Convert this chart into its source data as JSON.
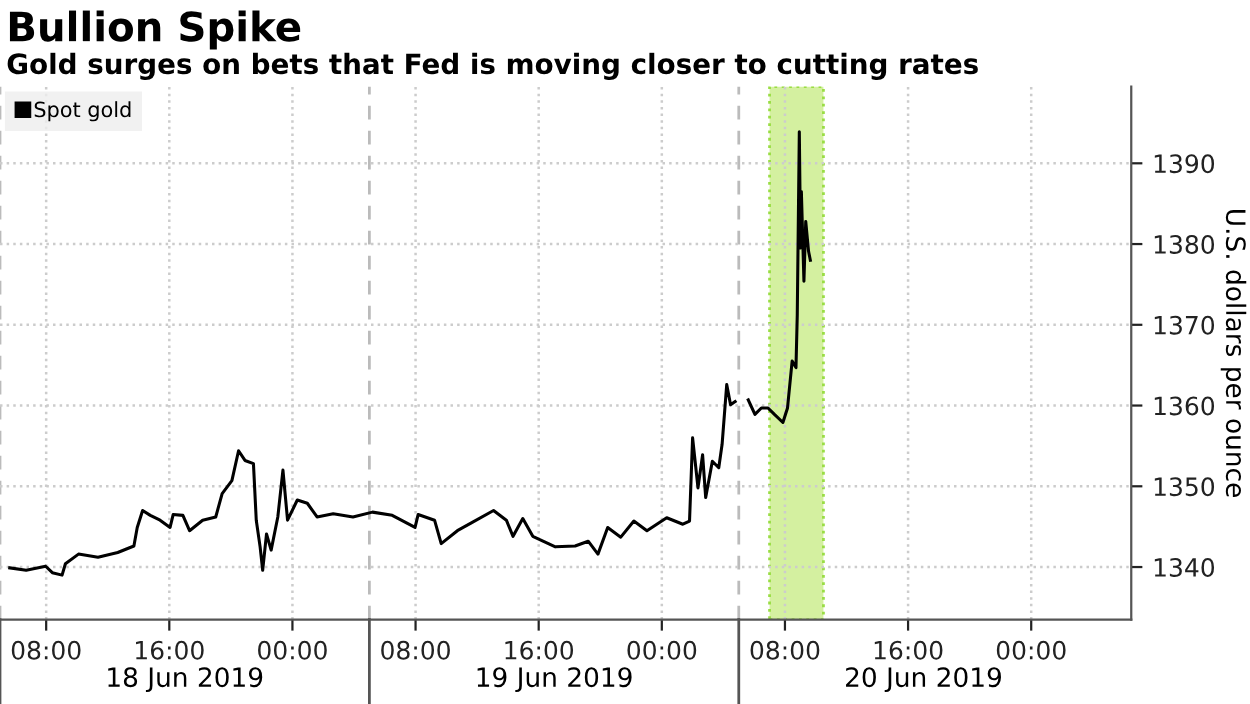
{
  "chart_data": {
    "type": "line",
    "title": "Bullion Spike",
    "subtitle": "Gold surges on bets that Fed is moving closer to cutting rates",
    "ylabel": "U.S. dollars per ounce",
    "x": [
      "2019-06-18T05:38",
      "2019-06-18T06:42",
      "2019-06-18T07:58",
      "2019-06-18T08:24",
      "2019-06-18T09:02",
      "2019-06-18T09:15",
      "2019-06-18T10:06",
      "2019-06-18T11:22",
      "2019-06-18T12:39",
      "2019-06-18T13:42",
      "2019-06-18T13:55",
      "2019-06-18T14:16",
      "2019-06-18T14:46",
      "2019-06-18T15:24",
      "2019-06-18T16:03",
      "2019-06-18T16:15",
      "2019-06-18T16:53",
      "2019-06-18T17:19",
      "2019-06-18T18:10",
      "2019-06-18T19:01",
      "2019-06-18T19:26",
      "2019-06-18T20:04",
      "2019-06-18T20:30",
      "2019-06-18T20:55",
      "2019-06-18T21:28",
      "2019-06-18T21:39",
      "2019-06-18T21:54",
      "2019-06-18T22:04",
      "2019-06-18T22:19",
      "2019-06-18T22:37",
      "2019-06-18T23:03",
      "2019-06-18T23:23",
      "2019-06-18T23:41",
      "2019-06-19T00:19",
      "2019-06-19T00:58",
      "2019-06-19T01:36",
      "2019-06-19T02:39",
      "2019-06-19T03:56",
      "2019-06-19T05:12",
      "2019-06-19T06:29",
      "2019-06-19T07:58",
      "2019-06-19T08:10",
      "2019-06-19T09:14",
      "2019-06-19T09:40",
      "2019-06-19T10:43",
      "2019-06-19T11:34",
      "2019-06-19T13:04",
      "2019-06-19T13:54",
      "2019-06-19T14:20",
      "2019-06-19T14:58",
      "2019-06-19T15:37",
      "2019-06-19T17:05",
      "2019-06-19T18:22",
      "2019-06-19T19:13",
      "2019-06-19T19:51",
      "2019-06-19T20:29",
      "2019-06-19T21:20",
      "2019-06-19T22:11",
      "2019-06-19T23:02",
      "2019-06-20T00:19",
      "2019-06-20T01:22",
      "2019-06-20T01:48",
      "2019-06-20T02:00",
      "2019-06-20T02:21",
      "2019-06-20T02:39",
      "2019-06-20T02:51",
      "2019-06-20T03:17",
      "2019-06-20T03:42",
      "2019-06-20T03:55",
      "2019-06-20T04:13",
      "2019-06-20T04:28",
      "2019-06-20T04:46",
      "2019-06-20T05:10",
      "2019-06-20T05:37",
      "2019-06-20T06:03",
      "2019-06-20T06:28",
      "2019-06-20T06:54",
      "2019-06-20T07:19",
      "2019-06-20T07:52",
      "2019-06-20T08:10",
      "2019-06-20T08:28",
      "2019-06-20T08:43",
      "2019-06-20T08:48",
      "2019-06-20T08:56",
      "2019-06-20T09:01",
      "2019-06-20T09:04",
      "2019-06-20T09:14",
      "2019-06-20T09:21",
      "2019-06-20T09:32",
      "2019-06-20T09:39"
    ],
    "series": [
      {
        "name": "Spot gold",
        "color": "#000000",
        "values": [
          1339.9,
          1339.6,
          1340.1,
          1339.3,
          1339.0,
          1340.4,
          1341.6,
          1341.2,
          1341.8,
          1342.6,
          1344.9,
          1347.0,
          1346.4,
          1345.8,
          1344.9,
          1346.5,
          1346.4,
          1344.5,
          1345.8,
          1346.2,
          1349.1,
          1350.7,
          1354.4,
          1353.2,
          1352.8,
          1345.8,
          1342.5,
          1339.6,
          1344.1,
          1342.1,
          1346.2,
          1352.0,
          1345.8,
          1348.3,
          1347.9,
          1346.2,
          1346.6,
          1346.2,
          1346.8,
          1346.4,
          1344.9,
          1346.5,
          1345.8,
          1342.9,
          1344.5,
          1345.4,
          1347.0,
          1345.8,
          1343.8,
          1346.0,
          1343.8,
          1342.5,
          1342.6,
          1343.2,
          1341.6,
          1344.9,
          1343.7,
          1345.7,
          1344.5,
          1346.1,
          1345.3,
          1345.7,
          1356.0,
          1349.8,
          1353.9,
          1348.6,
          1353.1,
          1352.3,
          1355.2,
          1362.6,
          1360.1,
          1360.5,
          null,
          1360.7,
          1358.9,
          1359.7,
          1359.7,
          1358.9,
          1357.9,
          1359.7,
          1365.5,
          1364.7,
          1371.2,
          1393.9,
          1379.5,
          1386.5,
          1375.4,
          1382.8,
          1379.1,
          1378.0
        ]
      }
    ],
    "xlim": [
      "2019-06-18T05:00",
      "2019-06-21T06:30"
    ],
    "xticks": [
      {
        "value": "2019-06-18T08:00",
        "label": "08:00"
      },
      {
        "value": "2019-06-18T16:00",
        "label": "16:00"
      },
      {
        "value": "2019-06-19T00:00",
        "label": "00:00"
      },
      {
        "value": "2019-06-19T08:00",
        "label": "08:00"
      },
      {
        "value": "2019-06-19T16:00",
        "label": "16:00"
      },
      {
        "value": "2019-06-20T00:00",
        "label": "00:00"
      },
      {
        "value": "2019-06-20T08:00",
        "label": "08:00"
      },
      {
        "value": "2019-06-20T16:00",
        "label": "16:00"
      },
      {
        "value": "2019-06-21T00:00",
        "label": "00:00"
      }
    ],
    "x2lim": [
      "2019-06-18T05:00",
      "2019-06-21T06:30"
    ],
    "x2ticks": [
      {
        "value": "2019-06-18T17:00",
        "label": "18 Jun 2019"
      },
      {
        "value": "2019-06-19T17:00",
        "label": "19 Jun 2019"
      },
      {
        "value": "2019-06-20T17:00",
        "label": "20 Jun 2019"
      }
    ],
    "ylim": [
      1333.5,
      1399.5
    ],
    "yticks": [
      1340,
      1350,
      1360,
      1370,
      1380,
      1390
    ],
    "ref_lines": [
      {
        "axis": "x",
        "value": "2019-06-18T05:00",
        "color": "#bbbbbb",
        "line_style": "dashed"
      },
      {
        "axis": "x",
        "value": "2019-06-19T05:00",
        "color": "#bbbbbb",
        "line_style": "dashed"
      },
      {
        "axis": "x",
        "value": "2019-06-20T05:00",
        "color": "#bbbbbb",
        "line_style": "dashed"
      }
    ],
    "bands": [
      {
        "axis": "x",
        "from": "2019-06-20T07:00",
        "to": "2019-06-20T10:30",
        "color": "#d4f0a0"
      }
    ],
    "grid": true,
    "legend": "top left",
    "marker": "none",
    "line_style": "solid"
  }
}
